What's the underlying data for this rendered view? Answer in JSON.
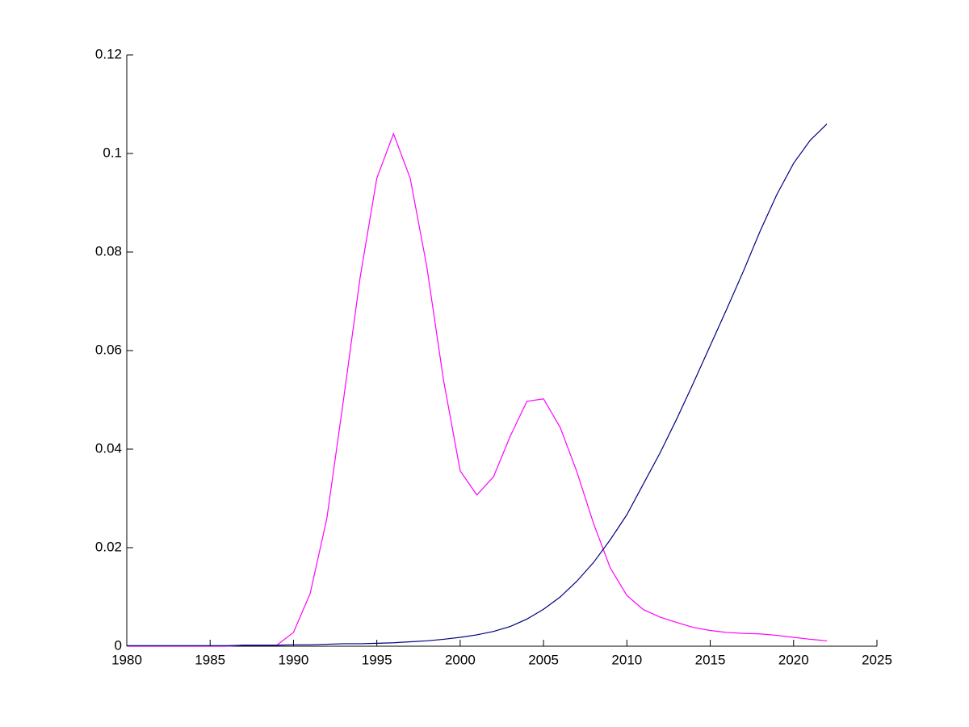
{
  "chart_data": {
    "type": "line",
    "x": [
      1980,
      1981,
      1982,
      1983,
      1984,
      1985,
      1986,
      1987,
      1988,
      1989,
      1990,
      1991,
      1992,
      1993,
      1994,
      1995,
      1996,
      1997,
      1998,
      1999,
      2000,
      2001,
      2002,
      2003,
      2004,
      2005,
      2006,
      2007,
      2008,
      2009,
      2010,
      2011,
      2012,
      2013,
      2014,
      2015,
      2016,
      2017,
      2018,
      2019,
      2020,
      2021,
      2022
    ],
    "series": [
      {
        "color": "#ff00ff",
        "values": [
          0,
          0,
          0,
          0,
          0,
          0,
          0,
          0.0002,
          0.0002,
          0.0002,
          0.0028,
          0.0107,
          0.0259,
          0.05,
          0.0749,
          0.095,
          0.104,
          0.095,
          0.077,
          0.054,
          0.0356,
          0.0307,
          0.0344,
          0.0426,
          0.0497,
          0.0502,
          0.0444,
          0.0354,
          0.0249,
          0.0159,
          0.0103,
          0.0074,
          0.0059,
          0.0048,
          0.0038,
          0.0032,
          0.0028,
          0.0026,
          0.0025,
          0.0022,
          0.0018,
          0.0014,
          0.0011
        ]
      },
      {
        "color": "#000080",
        "values": [
          0.0001,
          0.0001,
          0.0001,
          0.0001,
          0.0001,
          0.0001,
          0.0001,
          0.0002,
          0.0002,
          0.0002,
          0.0003,
          0.0003,
          0.0004,
          0.0005,
          0.0005,
          0.0006,
          0.0007,
          0.0009,
          0.0011,
          0.0014,
          0.0018,
          0.0023,
          0.003,
          0.004,
          0.0055,
          0.0075,
          0.01,
          0.0132,
          0.017,
          0.0216,
          0.0267,
          0.033,
          0.0393,
          0.0462,
          0.0535,
          0.061,
          0.0685,
          0.0762,
          0.0843,
          0.0917,
          0.098,
          0.1027,
          0.106
        ]
      }
    ],
    "xlim": [
      1980,
      2025
    ],
    "xticks": [
      1980,
      1985,
      1990,
      1995,
      2000,
      2005,
      2010,
      2015,
      2020,
      2025
    ],
    "ylim": [
      0,
      0.12
    ],
    "yticks": [
      0,
      0.02,
      0.04,
      0.06,
      0.08,
      0.1,
      0.12
    ]
  }
}
